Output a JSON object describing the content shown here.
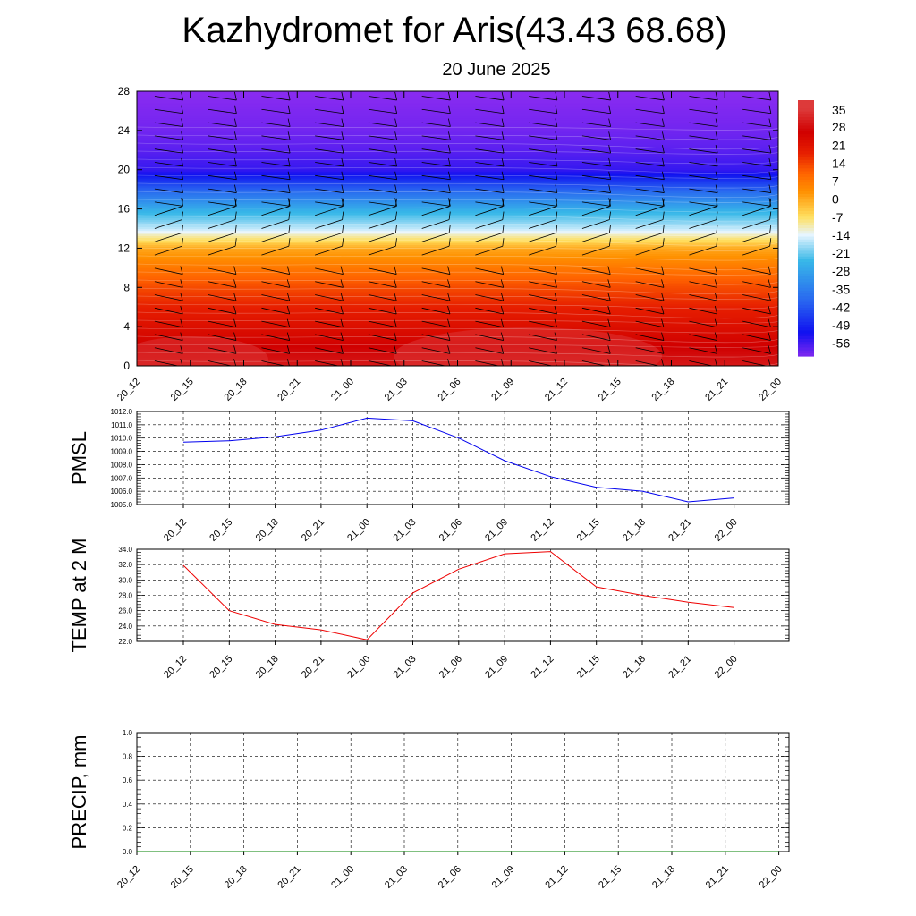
{
  "title": "Kazhydromet for Aris(43.43 68.68)",
  "subtitle": "20 June 2025",
  "chart_data": [
    {
      "type": "heatmap",
      "x": [
        "20_12",
        "20_15",
        "20_18",
        "20_21",
        "21_00",
        "21_03",
        "21_06",
        "21_09",
        "21_12",
        "21_15",
        "21_18",
        "21_21",
        "22_00"
      ],
      "y_ticks": [
        0,
        4,
        8,
        12,
        16,
        20,
        24,
        28
      ],
      "ylim": [
        0,
        28
      ],
      "colorbar_labels": [
        "35",
        "28",
        "21",
        "14",
        "7",
        "0",
        "-7",
        "-14",
        "-21",
        "-28",
        "-35",
        "-42",
        "-49",
        "-56"
      ],
      "temperature_profile": [
        {
          "level": 0,
          "value": 30
        },
        {
          "level": 2,
          "value": 26
        },
        {
          "level": 4,
          "value": 22
        },
        {
          "level": 6,
          "value": 18
        },
        {
          "level": 8,
          "value": 13
        },
        {
          "level": 10,
          "value": 7
        },
        {
          "level": 12,
          "value": 0
        },
        {
          "level": 13,
          "value": -8
        },
        {
          "level": 14,
          "value": -16
        },
        {
          "level": 16,
          "value": -26
        },
        {
          "level": 18,
          "value": -40
        },
        {
          "level": 20,
          "value": -55
        },
        {
          "level": 22,
          "value": -58
        },
        {
          "level": 24,
          "value": -60
        },
        {
          "level": 28,
          "value": -62
        }
      ],
      "wind_barbs": true,
      "colors": {
        "warmest": "#dd3a3a",
        "hot": "#d00000",
        "orange": "#ff9000",
        "yellow": "#ffe060",
        "cyan": "#38b8e8",
        "blue": "#1010f0",
        "violet": "#8a2bf0"
      }
    },
    {
      "type": "line",
      "ylabel": "PMSL",
      "x": [
        "20_12",
        "20_15",
        "20_18",
        "20_21",
        "21_00",
        "21_03",
        "21_06",
        "21_09",
        "21_12",
        "21_15",
        "21_18",
        "21_21",
        "22_00"
      ],
      "values": [
        1009.7,
        1009.8,
        1010.1,
        1010.6,
        1011.5,
        1011.3,
        1010.0,
        1008.3,
        1007.1,
        1006.3,
        1006.0,
        1005.2,
        1005.5
      ],
      "yticks": [
        "1005.0",
        "1006.0",
        "1007.0",
        "1008.0",
        "1009.0",
        "1010.0",
        "1011.0",
        "1012.0"
      ],
      "ylim": [
        1005,
        1012
      ],
      "grid": true,
      "color": "#0000ee"
    },
    {
      "type": "line",
      "ylabel": "TEMP at 2 M",
      "x": [
        "20_12",
        "20_15",
        "20_18",
        "20_21",
        "21_00",
        "21_03",
        "21_06",
        "21_09",
        "21_12",
        "21_15",
        "21_18",
        "21_21",
        "22_00"
      ],
      "values": [
        31.9,
        26.0,
        24.2,
        23.5,
        22.2,
        28.3,
        31.4,
        33.4,
        33.7,
        29.1,
        28.0,
        27.1,
        26.4
      ],
      "yticks": [
        "22.0",
        "24.0",
        "26.0",
        "28.0",
        "30.0",
        "32.0",
        "34.0"
      ],
      "ylim": [
        22,
        34
      ],
      "grid": true,
      "color": "#ee0000"
    },
    {
      "type": "line",
      "ylabel": "PRECIP, mm",
      "x": [
        "20_12",
        "20_15",
        "20_18",
        "20_21",
        "21_00",
        "21_03",
        "21_06",
        "21_09",
        "21_12",
        "21_15",
        "21_18",
        "21_21",
        "22_00"
      ],
      "values": [
        0,
        0,
        0,
        0,
        0,
        0,
        0,
        0,
        0,
        0,
        0,
        0,
        0
      ],
      "yticks": [
        "0.0",
        "0.2",
        "0.4",
        "0.6",
        "0.8",
        "1.0"
      ],
      "ylim": [
        0,
        1
      ],
      "grid": true,
      "color": "#008000"
    }
  ]
}
